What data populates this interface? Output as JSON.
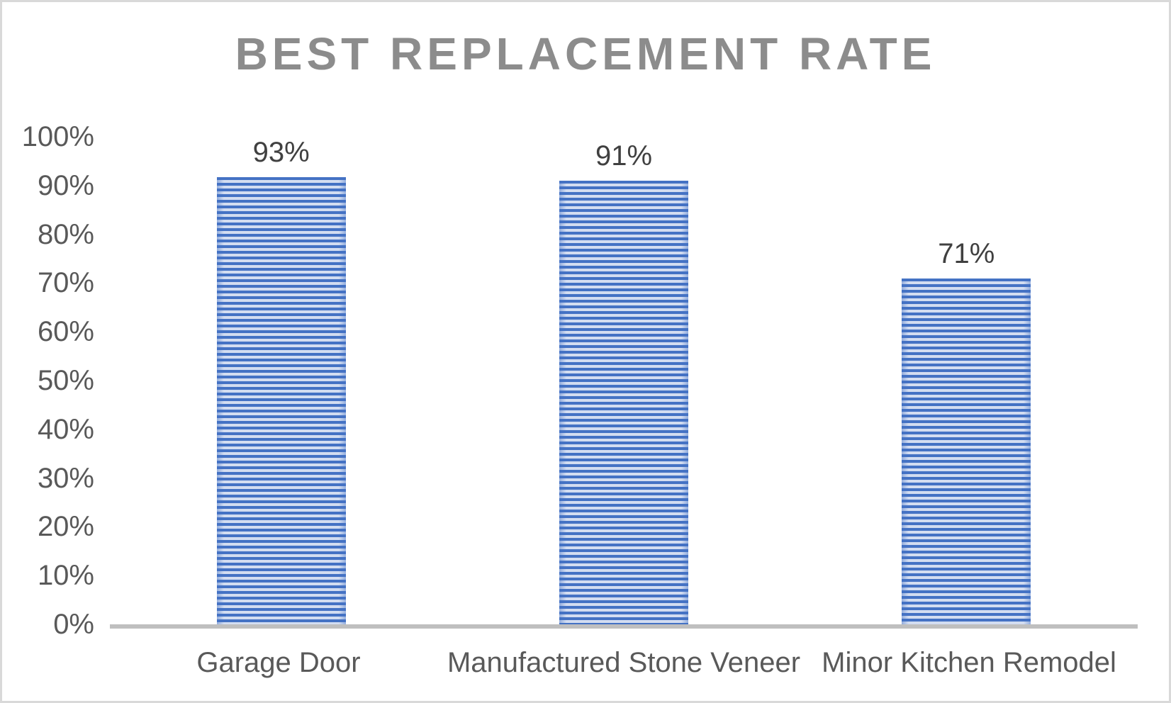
{
  "chart_data": {
    "type": "bar",
    "title": "BEST REPLACEMENT RATE",
    "categories": [
      "Garage Door",
      "Manufactured Stone Veneer",
      "Minor Kitchen Remodel"
    ],
    "values": [
      93,
      91,
      71
    ],
    "data_labels": [
      "93%",
      "91%",
      "71%"
    ],
    "xlabel": "",
    "ylabel": "",
    "ylim": [
      0,
      100
    ],
    "ytick_step": 10,
    "ytick_labels": [
      "0%",
      "10%",
      "20%",
      "30%",
      "40%",
      "50%",
      "60%",
      "70%",
      "80%",
      "90%",
      "100%"
    ],
    "grid": false,
    "legend": "none",
    "bar_fill_pattern": "horizontal-stripes",
    "colors": {
      "bar_stripe_dark": "#4472C4",
      "bar_stripe_light": "#D3DDF1",
      "title_text": "#8C8C8C",
      "axis_text": "#595959",
      "data_label_text": "#404040",
      "axis_line": "#BFBFBF",
      "canvas_border": "#D9D9D9",
      "background": "#FFFFFF"
    }
  }
}
